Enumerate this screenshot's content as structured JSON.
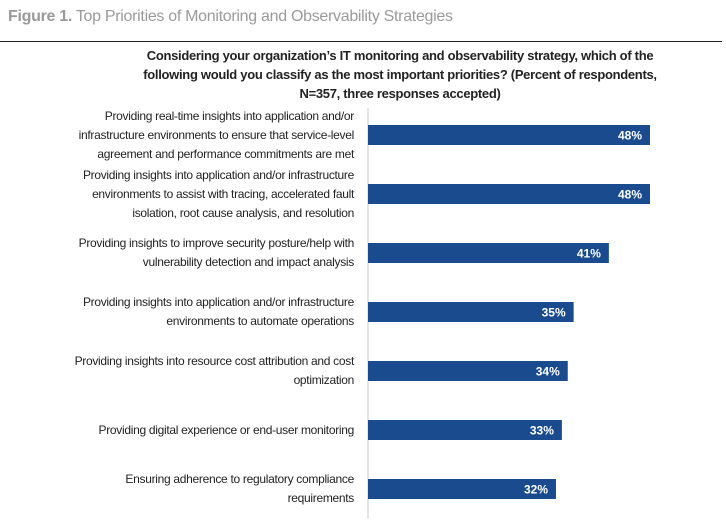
{
  "figure": {
    "number": "Figure 1.",
    "title": "Top Priorities of Monitoring and Observability Strategies"
  },
  "chart_data": {
    "type": "bar",
    "orientation": "horizontal",
    "title_lines": [
      "Considering your organization’s IT monitoring and observability strategy, which of the",
      "following would you classify as the most important priorities? (Percent of respondents,",
      "N=357, three responses accepted)"
    ],
    "categories": [
      [
        "Providing real-time insights into application and/or",
        "infrastructure environments to ensure that service-level",
        "agreement and performance commitments are met"
      ],
      [
        "Providing insights into application and/or infrastructure",
        "environments to assist with tracing, accelerated fault",
        "isolation, root cause analysis, and resolution"
      ],
      [
        "Providing insights to improve security posture/help with",
        "vulnerability detection and impact analysis"
      ],
      [
        "Providing insights into application and/or infrastructure",
        "environments to automate operations"
      ],
      [
        "Providing insights into resource cost attribution and cost",
        "optimization"
      ],
      [
        "Providing digital experience or end-user monitoring"
      ],
      [
        "Ensuring adherence to regulatory compliance",
        "requirements"
      ]
    ],
    "values": [
      48,
      48,
      41,
      35,
      34,
      33,
      32
    ],
    "value_labels": [
      "48%",
      "48%",
      "41%",
      "35%",
      "34%",
      "33%",
      "32%"
    ],
    "unit": "%",
    "xlim": [
      0,
      60
    ],
    "grid": false,
    "bar_color": "#1a4b8f"
  }
}
